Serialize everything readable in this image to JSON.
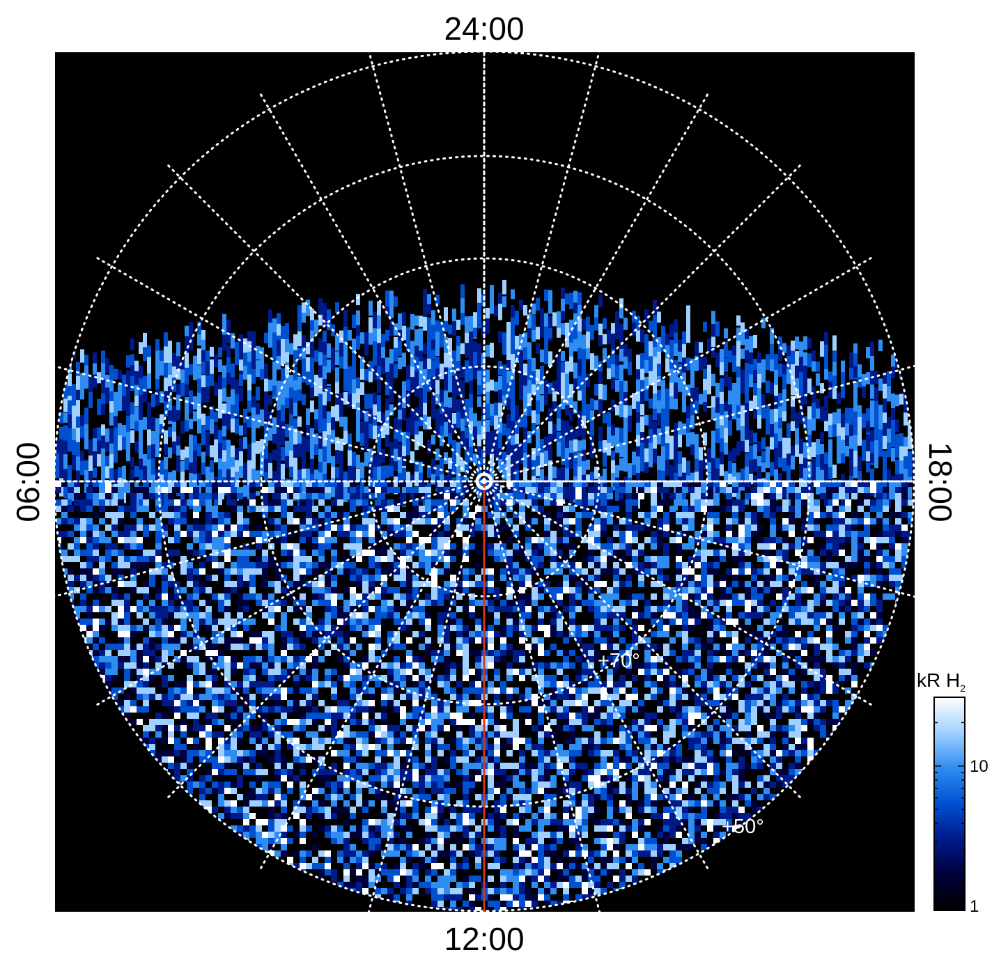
{
  "local_time_labels": {
    "top": "24:00",
    "bottom": "12:00",
    "left": "06:00",
    "right": "18:00"
  },
  "latitude_labels": {
    "inner": "+70°",
    "outer": "+50°"
  },
  "colorbar": {
    "title_main": "kR H",
    "title_sub": "2",
    "scale": "log",
    "range": [
      1,
      30
    ],
    "tick_labels": [
      "10",
      "1"
    ],
    "colors": [
      "#000000",
      "#00003a",
      "#001a8a",
      "#0050d0",
      "#2f8cf0",
      "#9fd0ff",
      "#ffffff"
    ]
  },
  "colors": {
    "background": "#000000",
    "grid": "#ffffff",
    "meridian_line": "#d0381a"
  }
}
